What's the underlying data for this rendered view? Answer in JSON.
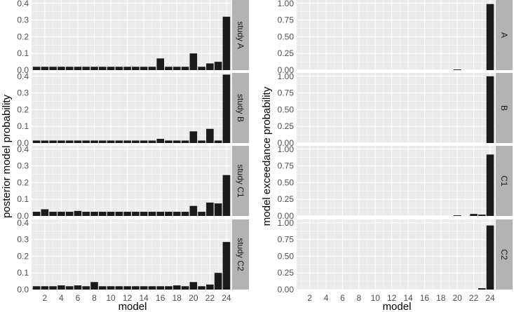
{
  "colors": {
    "panel_background": "#ebebeb",
    "grid_major": "#ffffff",
    "strip_background": "#b3b3b3",
    "bar_fill": "#1a1a1a",
    "tick_text": "#4d4d4d"
  },
  "chart_data": [
    {
      "type": "bar",
      "xlabel": "model",
      "ylabel": "posterior model probability",
      "ylim": [
        0,
        0.42
      ],
      "yticks": [
        0.0,
        0.1,
        0.2,
        0.3,
        0.4
      ],
      "ytick_labels": [
        "0.0",
        "0.1",
        "0.2",
        "0.3",
        "0.4"
      ],
      "xticks": [
        2,
        4,
        6,
        8,
        10,
        12,
        14,
        16,
        18,
        20,
        22,
        24
      ],
      "xtick_labels": [
        "2",
        "4",
        "6",
        "8",
        "10",
        "12",
        "14",
        "16",
        "18",
        "20",
        "22",
        "24"
      ],
      "facets": [
        {
          "label": "study A",
          "x": [
            1,
            2,
            3,
            4,
            5,
            6,
            7,
            8,
            9,
            10,
            11,
            12,
            13,
            14,
            15,
            16,
            17,
            18,
            19,
            20,
            21,
            22,
            23,
            24
          ],
          "values": [
            0.02,
            0.02,
            0.02,
            0.02,
            0.02,
            0.02,
            0.02,
            0.02,
            0.02,
            0.02,
            0.02,
            0.02,
            0.02,
            0.02,
            0.02,
            0.07,
            0.02,
            0.02,
            0.02,
            0.1,
            0.02,
            0.04,
            0.05,
            0.32
          ]
        },
        {
          "label": "study B",
          "x": [
            1,
            2,
            3,
            4,
            5,
            6,
            7,
            8,
            9,
            10,
            11,
            12,
            13,
            14,
            15,
            16,
            17,
            18,
            19,
            20,
            21,
            22,
            23,
            24
          ],
          "values": [
            0.015,
            0.015,
            0.015,
            0.015,
            0.015,
            0.015,
            0.015,
            0.015,
            0.015,
            0.015,
            0.015,
            0.015,
            0.015,
            0.015,
            0.015,
            0.025,
            0.015,
            0.015,
            0.015,
            0.07,
            0.015,
            0.085,
            0.015,
            0.41
          ]
        },
        {
          "label": "study C1",
          "x": [
            1,
            2,
            3,
            4,
            5,
            6,
            7,
            8,
            9,
            10,
            11,
            12,
            13,
            14,
            15,
            16,
            17,
            18,
            19,
            20,
            21,
            22,
            23,
            24
          ],
          "values": [
            0.025,
            0.04,
            0.025,
            0.025,
            0.025,
            0.03,
            0.025,
            0.025,
            0.025,
            0.025,
            0.025,
            0.025,
            0.025,
            0.025,
            0.025,
            0.025,
            0.025,
            0.025,
            0.025,
            0.06,
            0.025,
            0.08,
            0.075,
            0.245
          ]
        },
        {
          "label": "study C2",
          "x": [
            1,
            2,
            3,
            4,
            5,
            6,
            7,
            8,
            9,
            10,
            11,
            12,
            13,
            14,
            15,
            16,
            17,
            18,
            19,
            20,
            21,
            22,
            23,
            24
          ],
          "values": [
            0.02,
            0.02,
            0.02,
            0.025,
            0.02,
            0.025,
            0.02,
            0.045,
            0.02,
            0.02,
            0.02,
            0.02,
            0.02,
            0.02,
            0.02,
            0.02,
            0.02,
            0.025,
            0.02,
            0.045,
            0.02,
            0.03,
            0.1,
            0.285
          ]
        }
      ]
    },
    {
      "type": "bar",
      "xlabel": "model",
      "ylabel": "model exceedance probability",
      "ylim": [
        0,
        1.05
      ],
      "yticks": [
        0.0,
        0.25,
        0.5,
        0.75,
        1.0
      ],
      "ytick_labels": [
        "0.00",
        "0.25",
        "0.50",
        "0.75",
        "1.00"
      ],
      "xticks": [
        2,
        4,
        6,
        8,
        10,
        12,
        14,
        16,
        18,
        20,
        22,
        24
      ],
      "xtick_labels": [
        "2",
        "4",
        "6",
        "8",
        "10",
        "12",
        "14",
        "16",
        "18",
        "20",
        "22",
        "24"
      ],
      "facets": [
        {
          "label": "A",
          "x": [
            1,
            2,
            3,
            4,
            5,
            6,
            7,
            8,
            9,
            10,
            11,
            12,
            13,
            14,
            15,
            16,
            17,
            18,
            19,
            20,
            21,
            22,
            23,
            24
          ],
          "values": [
            0,
            0,
            0,
            0,
            0,
            0,
            0,
            0,
            0,
            0,
            0,
            0,
            0,
            0,
            0,
            0,
            0,
            0,
            0,
            0.01,
            0,
            0,
            0,
            0.99
          ]
        },
        {
          "label": "B",
          "x": [
            1,
            2,
            3,
            4,
            5,
            6,
            7,
            8,
            9,
            10,
            11,
            12,
            13,
            14,
            15,
            16,
            17,
            18,
            19,
            20,
            21,
            22,
            23,
            24
          ],
          "values": [
            0,
            0,
            0,
            0,
            0,
            0,
            0,
            0,
            0,
            0,
            0,
            0,
            0,
            0,
            0,
            0,
            0,
            0,
            0,
            0,
            0,
            0,
            0,
            1.0
          ]
        },
        {
          "label": "C1",
          "x": [
            1,
            2,
            3,
            4,
            5,
            6,
            7,
            8,
            9,
            10,
            11,
            12,
            13,
            14,
            15,
            16,
            17,
            18,
            19,
            20,
            21,
            22,
            23,
            24
          ],
          "values": [
            0,
            0,
            0,
            0,
            0,
            0,
            0,
            0,
            0,
            0,
            0,
            0,
            0,
            0,
            0,
            0,
            0,
            0,
            0,
            0.01,
            0,
            0.03,
            0.02,
            0.92
          ]
        },
        {
          "label": "C2",
          "x": [
            1,
            2,
            3,
            4,
            5,
            6,
            7,
            8,
            9,
            10,
            11,
            12,
            13,
            14,
            15,
            16,
            17,
            18,
            19,
            20,
            21,
            22,
            23,
            24
          ],
          "values": [
            0,
            0,
            0,
            0,
            0,
            0,
            0,
            0,
            0,
            0,
            0,
            0,
            0,
            0,
            0,
            0,
            0,
            0,
            0,
            0,
            0,
            0,
            0.02,
            0.96
          ]
        }
      ]
    }
  ]
}
